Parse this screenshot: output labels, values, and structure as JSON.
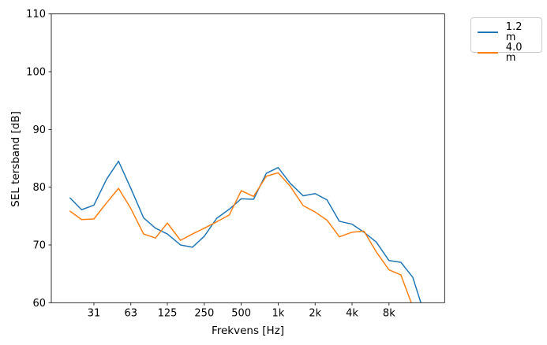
{
  "chart_data": {
    "type": "line",
    "title": "",
    "xlabel": "Frekvens [Hz]",
    "ylabel": "SEL tersband [dB]",
    "x_scale": "log, third-octave bands",
    "grid": false,
    "legend_position": "outside upper right",
    "ylim": [
      60,
      110
    ],
    "y_ticks": [
      60,
      70,
      80,
      90,
      100,
      110
    ],
    "x_ticks": [
      {
        "f": 31.5,
        "label": "31"
      },
      {
        "f": 63,
        "label": "63"
      },
      {
        "f": 125,
        "label": "125"
      },
      {
        "f": 250,
        "label": "250"
      },
      {
        "f": 500,
        "label": "500"
      },
      {
        "f": 1000,
        "label": "1k"
      },
      {
        "f": 2000,
        "label": "2k"
      },
      {
        "f": 4000,
        "label": "4k"
      },
      {
        "f": 8000,
        "label": "8k"
      }
    ],
    "frequencies": [
      20,
      25,
      31.5,
      40,
      50,
      63,
      80,
      100,
      125,
      160,
      200,
      250,
      315,
      400,
      500,
      630,
      800,
      1000,
      1250,
      1600,
      2000,
      2500,
      3150,
      4000,
      5000,
      6300,
      8000,
      10000,
      12500,
      16000
    ],
    "series": [
      {
        "name": "1.2 m",
        "color": "#1f77b4",
        "values": [
          78.2,
          76.1,
          76.9,
          81.4,
          84.5,
          79.8,
          74.7,
          72.9,
          71.9,
          70.0,
          69.6,
          71.5,
          74.6,
          76.2,
          78.0,
          77.9,
          82.4,
          83.4,
          80.7,
          78.5,
          78.9,
          77.8,
          74.1,
          73.6,
          72.2,
          70.5,
          67.3,
          67.0,
          64.4,
          57.2
        ]
      },
      {
        "name": "4.0 m",
        "color": "#ff7f0e",
        "values": [
          75.9,
          74.4,
          74.5,
          77.3,
          79.8,
          76.3,
          71.9,
          71.2,
          73.8,
          70.8,
          71.9,
          72.9,
          74.0,
          75.2,
          79.4,
          78.4,
          81.9,
          82.5,
          80.2,
          76.8,
          75.7,
          74.3,
          71.4,
          72.2,
          72.4,
          68.8,
          65.7,
          64.8,
          59.3,
          54.0
        ]
      }
    ]
  }
}
